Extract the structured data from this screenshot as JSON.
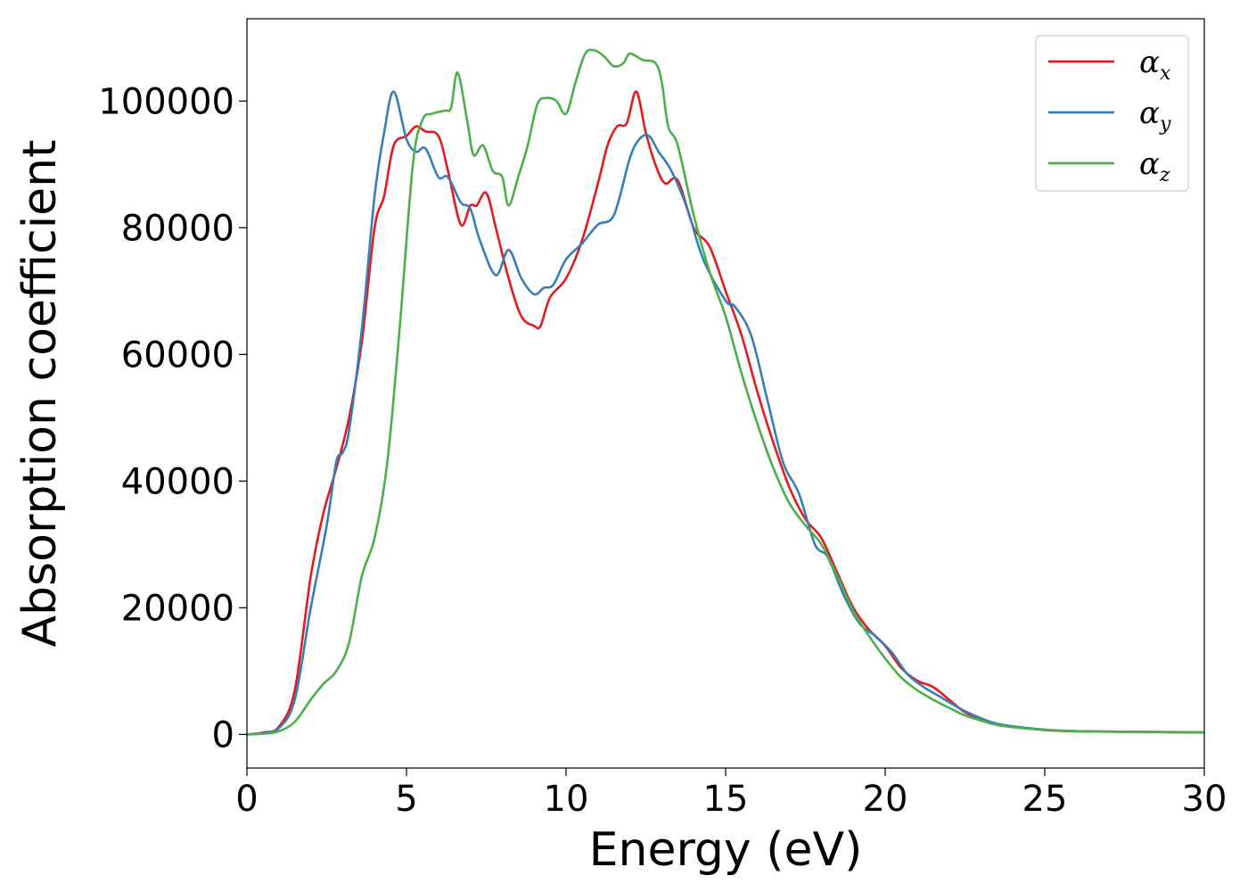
{
  "chart_data": {
    "type": "line",
    "xlabel": "Energy (eV)",
    "ylabel": "Absorption coefficient",
    "xlim": [
      0,
      30
    ],
    "ylim": [
      -5300,
      113000
    ],
    "xticks": [
      0,
      5,
      10,
      15,
      20,
      25,
      30
    ],
    "yticks": [
      0,
      20000,
      40000,
      60000,
      80000,
      100000
    ],
    "grid": false,
    "legend_position": "top-right",
    "series": [
      {
        "name": "α",
        "subscript": "x",
        "color": "#e41a1c",
        "points": [
          [
            0,
            0
          ],
          [
            0.5,
            300
          ],
          [
            1.0,
            1200
          ],
          [
            1.5,
            7000
          ],
          [
            2.0,
            25000
          ],
          [
            2.4,
            35000
          ],
          [
            2.8,
            42000
          ],
          [
            3.2,
            50000
          ],
          [
            3.6,
            62000
          ],
          [
            4.0,
            80000
          ],
          [
            4.3,
            85000
          ],
          [
            4.6,
            93000
          ],
          [
            5.0,
            94500
          ],
          [
            5.3,
            96000
          ],
          [
            5.6,
            95200
          ],
          [
            6.0,
            94500
          ],
          [
            6.3,
            89000
          ],
          [
            6.7,
            80500
          ],
          [
            7.0,
            83500
          ],
          [
            7.2,
            83500
          ],
          [
            7.5,
            85500
          ],
          [
            7.8,
            80000
          ],
          [
            8.2,
            72000
          ],
          [
            8.6,
            66000
          ],
          [
            9.0,
            64500
          ],
          [
            9.2,
            64500
          ],
          [
            9.5,
            69000
          ],
          [
            10.0,
            72000
          ],
          [
            10.5,
            78000
          ],
          [
            11.0,
            87000
          ],
          [
            11.3,
            93000
          ],
          [
            11.6,
            96000
          ],
          [
            11.9,
            96500
          ],
          [
            12.2,
            101500
          ],
          [
            12.5,
            95000
          ],
          [
            12.8,
            90000
          ],
          [
            13.1,
            87000
          ],
          [
            13.5,
            87500
          ],
          [
            14.0,
            80000
          ],
          [
            14.5,
            77000
          ],
          [
            15.0,
            70000
          ],
          [
            15.5,
            63000
          ],
          [
            16.0,
            54000
          ],
          [
            16.5,
            46000
          ],
          [
            17.0,
            39000
          ],
          [
            17.5,
            34000
          ],
          [
            18.0,
            31000
          ],
          [
            18.5,
            25500
          ],
          [
            19.0,
            20000
          ],
          [
            19.5,
            16500
          ],
          [
            20.0,
            14000
          ],
          [
            20.5,
            10500
          ],
          [
            21.0,
            8500
          ],
          [
            21.5,
            7500
          ],
          [
            22.0,
            5500
          ],
          [
            22.5,
            3500
          ],
          [
            23.0,
            2500
          ],
          [
            23.5,
            1600
          ],
          [
            24.0,
            1200
          ],
          [
            25.0,
            700
          ],
          [
            26.0,
            500
          ],
          [
            28.0,
            400
          ],
          [
            30.0,
            300
          ]
        ]
      },
      {
        "name": "α",
        "subscript": "y",
        "color": "#377eb8",
        "points": [
          [
            0,
            0
          ],
          [
            0.5,
            200
          ],
          [
            1.0,
            1000
          ],
          [
            1.5,
            5500
          ],
          [
            2.0,
            20000
          ],
          [
            2.5,
            33000
          ],
          [
            2.8,
            43000
          ],
          [
            3.0,
            44500
          ],
          [
            3.2,
            48000
          ],
          [
            3.6,
            64000
          ],
          [
            4.0,
            85000
          ],
          [
            4.3,
            95000
          ],
          [
            4.6,
            101500
          ],
          [
            5.0,
            94000
          ],
          [
            5.3,
            92000
          ],
          [
            5.6,
            92500
          ],
          [
            6.0,
            88000
          ],
          [
            6.3,
            88000
          ],
          [
            6.7,
            84000
          ],
          [
            7.0,
            83000
          ],
          [
            7.3,
            78000
          ],
          [
            7.8,
            72500
          ],
          [
            8.2,
            76500
          ],
          [
            8.6,
            72000
          ],
          [
            9.0,
            69500
          ],
          [
            9.3,
            70500
          ],
          [
            9.6,
            71000
          ],
          [
            10.0,
            75000
          ],
          [
            10.5,
            77500
          ],
          [
            11.0,
            80500
          ],
          [
            11.5,
            82000
          ],
          [
            12.0,
            91000
          ],
          [
            12.3,
            94000
          ],
          [
            12.6,
            94500
          ],
          [
            12.9,
            92000
          ],
          [
            13.3,
            89000
          ],
          [
            13.8,
            83000
          ],
          [
            14.3,
            75000
          ],
          [
            15.0,
            68500
          ],
          [
            15.3,
            67500
          ],
          [
            15.8,
            63000
          ],
          [
            16.3,
            53000
          ],
          [
            16.8,
            43000
          ],
          [
            17.3,
            38000
          ],
          [
            17.8,
            30000
          ],
          [
            18.2,
            28000
          ],
          [
            18.7,
            22000
          ],
          [
            19.2,
            17500
          ],
          [
            19.7,
            15500
          ],
          [
            20.2,
            13000
          ],
          [
            20.7,
            9500
          ],
          [
            21.2,
            7500
          ],
          [
            21.7,
            6000
          ],
          [
            22.2,
            4500
          ],
          [
            22.7,
            3200
          ],
          [
            23.5,
            1700
          ],
          [
            24.5,
            1000
          ],
          [
            25.5,
            600
          ],
          [
            27.0,
            450
          ],
          [
            30.0,
            350
          ]
        ]
      },
      {
        "name": "α",
        "subscript": "z",
        "color": "#4daf4a",
        "points": [
          [
            0,
            0
          ],
          [
            0.5,
            100
          ],
          [
            1.0,
            500
          ],
          [
            1.5,
            2000
          ],
          [
            2.0,
            5500
          ],
          [
            2.4,
            8000
          ],
          [
            2.8,
            10000
          ],
          [
            3.2,
            14500
          ],
          [
            3.6,
            25000
          ],
          [
            4.0,
            31000
          ],
          [
            4.4,
            43000
          ],
          [
            4.8,
            65000
          ],
          [
            5.2,
            90000
          ],
          [
            5.5,
            97000
          ],
          [
            5.8,
            98000
          ],
          [
            6.2,
            98500
          ],
          [
            6.4,
            99000
          ],
          [
            6.6,
            104500
          ],
          [
            6.9,
            97000
          ],
          [
            7.1,
            91500
          ],
          [
            7.4,
            93000
          ],
          [
            7.7,
            89000
          ],
          [
            8.0,
            88000
          ],
          [
            8.2,
            83500
          ],
          [
            8.5,
            88000
          ],
          [
            8.8,
            93000
          ],
          [
            9.1,
            99500
          ],
          [
            9.4,
            100500
          ],
          [
            9.7,
            100000
          ],
          [
            10.0,
            98000
          ],
          [
            10.3,
            103000
          ],
          [
            10.6,
            107500
          ],
          [
            10.9,
            108000
          ],
          [
            11.2,
            107000
          ],
          [
            11.5,
            105500
          ],
          [
            11.8,
            106000
          ],
          [
            12.0,
            107500
          ],
          [
            12.4,
            106500
          ],
          [
            12.8,
            106000
          ],
          [
            13.0,
            103000
          ],
          [
            13.2,
            96000
          ],
          [
            13.5,
            93000
          ],
          [
            14.0,
            82000
          ],
          [
            14.5,
            73000
          ],
          [
            15.0,
            66000
          ],
          [
            15.5,
            57000
          ],
          [
            16.0,
            49000
          ],
          [
            16.5,
            42000
          ],
          [
            17.0,
            36500
          ],
          [
            17.5,
            33000
          ],
          [
            18.0,
            30000
          ],
          [
            18.5,
            25000
          ],
          [
            19.0,
            19500
          ],
          [
            19.5,
            15500
          ],
          [
            20.0,
            12000
          ],
          [
            20.5,
            9000
          ],
          [
            21.0,
            7000
          ],
          [
            21.5,
            5500
          ],
          [
            22.0,
            4200
          ],
          [
            22.5,
            3000
          ],
          [
            23.0,
            2200
          ],
          [
            23.5,
            1500
          ],
          [
            24.5,
            900
          ],
          [
            26.0,
            500
          ],
          [
            28.0,
            400
          ],
          [
            30.0,
            300
          ]
        ]
      }
    ]
  }
}
